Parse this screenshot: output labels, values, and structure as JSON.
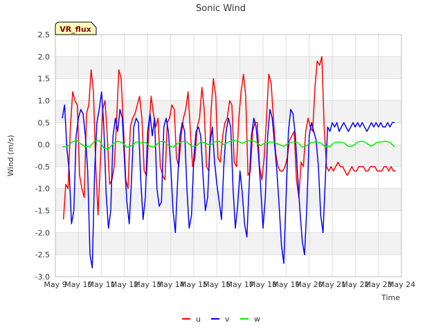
{
  "badge": {
    "label": "VR_flux",
    "background": "#ffffc0",
    "text_color": "#8b0000"
  },
  "colors": {
    "band": "#f2f2f2",
    "grid": "#dddddd",
    "axis": "#bbbbbb"
  },
  "chart_data": {
    "type": "line",
    "title": "Sonic Wind",
    "xlabel": "Time",
    "ylabel": "Wind (m/s)",
    "xlim": [
      0,
      15
    ],
    "ylim": [
      -3.0,
      2.5
    ],
    "y_ticks": [
      -3.0,
      -2.5,
      -2.0,
      -1.5,
      -1.0,
      -0.5,
      0.0,
      0.5,
      1.0,
      1.5,
      2.0,
      2.5
    ],
    "y_tick_labels": [
      "-3.0",
      "-2.5",
      "-2.0",
      "-1.5",
      "-1.0",
      "-0.5",
      "0.0",
      "0.5",
      "1.0",
      "1.5",
      "2.0",
      "2.5"
    ],
    "x_tick_labels": [
      "May 9",
      "May 10",
      "May 11",
      "May 12",
      "May 13",
      "May 14",
      "May 15",
      "May 16",
      "May 17",
      "May 18",
      "May 19",
      "May 20",
      "May 21",
      "May 22",
      "May 23",
      "May 24"
    ],
    "x_unit": "days since May 9",
    "grid": true,
    "legend_position": "bottom-center",
    "series": [
      {
        "name": "u",
        "color": "#ff0000",
        "x": [
          0.35,
          0.45,
          0.55,
          0.65,
          0.75,
          0.85,
          0.95,
          1.05,
          1.15,
          1.25,
          1.35,
          1.45,
          1.55,
          1.65,
          1.75,
          1.85,
          1.95,
          2.05,
          2.15,
          2.25,
          2.35,
          2.45,
          2.55,
          2.65,
          2.75,
          2.85,
          2.95,
          3.05,
          3.15,
          3.25,
          3.35,
          3.45,
          3.55,
          3.65,
          3.75,
          3.85,
          3.95,
          4.05,
          4.15,
          4.25,
          4.35,
          4.45,
          4.55,
          4.65,
          4.75,
          4.85,
          4.95,
          5.05,
          5.15,
          5.25,
          5.35,
          5.45,
          5.55,
          5.65,
          5.75,
          5.85,
          5.95,
          6.05,
          6.15,
          6.25,
          6.35,
          6.45,
          6.55,
          6.65,
          6.75,
          6.85,
          6.95,
          7.05,
          7.15,
          7.25,
          7.35,
          7.45,
          7.55,
          7.65,
          7.75,
          7.85,
          7.95,
          8.05,
          8.15,
          8.25,
          8.35,
          8.45,
          8.55,
          8.65,
          8.75,
          8.85,
          8.95,
          9.05,
          9.15,
          9.25,
          9.35,
          9.45,
          9.55,
          9.65,
          9.75,
          9.85,
          9.95,
          10.05,
          10.15,
          10.25,
          10.35,
          10.45,
          10.55,
          10.65,
          10.75,
          10.85,
          10.95,
          11.05,
          11.15,
          11.25,
          11.35,
          11.45,
          11.55,
          11.65,
          11.75,
          11.85,
          11.95,
          12.05,
          12.15,
          12.25,
          12.35,
          12.45,
          12.55,
          12.65,
          12.75,
          12.85,
          12.95,
          13.05,
          13.15,
          13.25,
          13.35,
          13.45,
          13.55,
          13.65,
          13.75,
          13.85,
          13.95,
          14.05,
          14.15,
          14.25,
          14.35,
          14.45,
          14.55,
          14.65,
          14.75
        ],
        "values": [
          -1.7,
          -0.9,
          -1.0,
          0.4,
          1.2,
          1.0,
          0.9,
          -0.7,
          -1.0,
          -1.2,
          0.7,
          0.9,
          1.7,
          1.2,
          -0.5,
          -1.6,
          -0.4,
          0.8,
          1.0,
          0.2,
          -0.9,
          -0.8,
          -0.5,
          0.5,
          1.7,
          1.5,
          0.4,
          -0.8,
          -1.0,
          0.4,
          0.6,
          0.7,
          0.9,
          1.1,
          0.6,
          -0.6,
          -0.7,
          0.3,
          1.1,
          0.7,
          0.4,
          0.6,
          -0.5,
          -0.7,
          -0.8,
          0.5,
          0.6,
          0.9,
          0.8,
          -0.3,
          -0.5,
          0.2,
          0.6,
          0.8,
          1.2,
          0.3,
          -0.5,
          -0.3,
          0.4,
          0.6,
          1.3,
          0.8,
          -0.5,
          -0.6,
          0.8,
          1.5,
          1.1,
          -0.3,
          -0.4,
          0.2,
          0.5,
          0.6,
          1.0,
          0.9,
          -0.4,
          -0.5,
          0.6,
          1.2,
          1.6,
          1.1,
          -0.7,
          -0.6,
          0.3,
          0.5,
          0.5,
          -0.5,
          -0.8,
          -0.3,
          0.6,
          1.6,
          1.4,
          0.6,
          -0.2,
          -0.5,
          -0.6,
          -0.6,
          -0.5,
          -0.3,
          0.1,
          0.2,
          0.3,
          -0.8,
          -1.2,
          -0.4,
          -0.5,
          0.3,
          0.6,
          0.4,
          0.3,
          1.3,
          1.9,
          1.8,
          2.0,
          0.4,
          -0.5,
          -0.6,
          -0.5,
          -0.6,
          -0.5,
          -0.4,
          -0.5,
          -0.5,
          -0.6,
          -0.7,
          -0.6,
          -0.5,
          -0.6,
          -0.6,
          -0.5,
          -0.5,
          -0.5,
          -0.6,
          -0.6,
          -0.5,
          -0.5,
          -0.5,
          -0.6,
          -0.6,
          -0.6,
          -0.5,
          -0.5,
          -0.6,
          -0.5,
          -0.6,
          -0.6
        ]
      },
      {
        "name": "v",
        "color": "#0000ff",
        "x": [
          0.3,
          0.4,
          0.5,
          0.6,
          0.7,
          0.8,
          0.9,
          1.0,
          1.1,
          1.2,
          1.3,
          1.4,
          1.5,
          1.6,
          1.7,
          1.8,
          1.9,
          2.0,
          2.1,
          2.2,
          2.3,
          2.4,
          2.5,
          2.6,
          2.7,
          2.8,
          2.9,
          3.0,
          3.1,
          3.2,
          3.3,
          3.4,
          3.5,
          3.6,
          3.7,
          3.8,
          3.9,
          4.0,
          4.1,
          4.2,
          4.3,
          4.4,
          4.5,
          4.6,
          4.7,
          4.8,
          4.9,
          5.0,
          5.1,
          5.2,
          5.3,
          5.4,
          5.5,
          5.6,
          5.7,
          5.8,
          5.9,
          6.0,
          6.1,
          6.2,
          6.3,
          6.4,
          6.5,
          6.6,
          6.7,
          6.8,
          6.9,
          7.0,
          7.1,
          7.2,
          7.3,
          7.4,
          7.5,
          7.6,
          7.7,
          7.8,
          7.9,
          8.0,
          8.1,
          8.2,
          8.3,
          8.4,
          8.5,
          8.6,
          8.7,
          8.8,
          8.9,
          9.0,
          9.1,
          9.2,
          9.3,
          9.4,
          9.5,
          9.6,
          9.7,
          9.8,
          9.9,
          10.0,
          10.1,
          10.2,
          10.3,
          10.4,
          10.5,
          10.6,
          10.7,
          10.8,
          10.9,
          11.0,
          11.1,
          11.2,
          11.3,
          11.4,
          11.5,
          11.6,
          11.7,
          11.8,
          11.9,
          12.0,
          12.1,
          12.2,
          12.3,
          12.4,
          12.5,
          12.6,
          12.7,
          12.8,
          12.9,
          13.0,
          13.1,
          13.2,
          13.3,
          13.4,
          13.5,
          13.6,
          13.7,
          13.8,
          13.9,
          14.0,
          14.1,
          14.2,
          14.3,
          14.4,
          14.5,
          14.6,
          14.7
        ],
        "values": [
          0.6,
          0.9,
          -0.1,
          -0.6,
          -1.8,
          -1.5,
          0.2,
          0.6,
          0.8,
          0.7,
          0.2,
          -0.6,
          -2.5,
          -2.8,
          -0.6,
          0.5,
          0.8,
          1.2,
          0.4,
          -1.1,
          -1.9,
          -1.5,
          0.2,
          0.6,
          0.3,
          0.8,
          0.6,
          -0.4,
          -1.3,
          -1.8,
          -0.8,
          0.4,
          0.6,
          0.5,
          -0.8,
          -1.7,
          -1.2,
          0.3,
          0.7,
          0.2,
          0.6,
          -1.0,
          -1.4,
          -1.3,
          0.4,
          0.6,
          0.3,
          -0.5,
          -1.5,
          -2.0,
          -0.8,
          0.2,
          0.5,
          0.3,
          -1.0,
          -1.9,
          -1.6,
          -0.3,
          0.3,
          0.4,
          0.2,
          -0.7,
          -1.5,
          -1.2,
          0.0,
          0.4,
          -0.4,
          -0.9,
          -1.3,
          -1.7,
          -0.5,
          0.3,
          0.6,
          0.4,
          -1.0,
          -1.9,
          -1.4,
          -0.6,
          -1.1,
          -1.8,
          -2.1,
          -0.9,
          0.2,
          0.6,
          0.4,
          -0.2,
          -1.0,
          -1.9,
          -1.2,
          0.2,
          0.8,
          0.6,
          0.0,
          -0.6,
          -1.4,
          -2.3,
          -2.7,
          -1.2,
          0.3,
          0.8,
          0.7,
          0.2,
          -0.7,
          -1.5,
          -2.2,
          -2.5,
          -1.4,
          0.2,
          0.5,
          0.3,
          0.1,
          -0.5,
          -1.6,
          -2.0,
          -0.8,
          0.4,
          0.3,
          0.5,
          0.4,
          0.5,
          0.3,
          0.4,
          0.5,
          0.4,
          0.3,
          0.4,
          0.5,
          0.4,
          0.5,
          0.4,
          0.5,
          0.4,
          0.3,
          0.4,
          0.5,
          0.4,
          0.5,
          0.4,
          0.5,
          0.4,
          0.4,
          0.5,
          0.4,
          0.5,
          0.5
        ]
      },
      {
        "name": "w",
        "color": "#00ee00",
        "x": [
          0.3,
          0.5,
          0.7,
          0.9,
          1.1,
          1.3,
          1.5,
          1.7,
          1.9,
          2.1,
          2.3,
          2.5,
          2.7,
          2.9,
          3.1,
          3.3,
          3.5,
          3.7,
          3.9,
          4.1,
          4.3,
          4.5,
          4.7,
          4.9,
          5.1,
          5.3,
          5.5,
          5.7,
          5.9,
          6.1,
          6.3,
          6.5,
          6.7,
          6.9,
          7.1,
          7.3,
          7.5,
          7.7,
          7.9,
          8.1,
          8.3,
          8.5,
          8.7,
          8.9,
          9.1,
          9.3,
          9.5,
          9.7,
          9.9,
          10.1,
          10.3,
          10.5,
          10.7,
          10.9,
          11.1,
          11.3,
          11.5,
          11.7,
          11.9,
          12.1,
          12.3,
          12.5,
          12.7,
          12.9,
          13.1,
          13.3,
          13.5,
          13.7,
          13.9,
          14.1,
          14.3,
          14.5,
          14.7
        ],
        "values": [
          -0.05,
          -0.05,
          0.05,
          0.1,
          0.02,
          -0.05,
          -0.04,
          0.08,
          0.1,
          -0.08,
          -0.1,
          0.02,
          0.08,
          0.04,
          -0.06,
          -0.03,
          0.06,
          0.05,
          0.05,
          -0.04,
          -0.05,
          0.06,
          0.08,
          -0.02,
          -0.06,
          0.03,
          0.07,
          0.06,
          -0.04,
          -0.03,
          0.06,
          0.04,
          -0.02,
          0.06,
          0.08,
          0.0,
          0.06,
          0.1,
          0.08,
          0.03,
          0.08,
          0.1,
          0.05,
          -0.02,
          0.04,
          0.06,
          0.05,
          0.0,
          -0.04,
          0.03,
          0.06,
          0.05,
          -0.06,
          -0.02,
          0.05,
          0.06,
          0.04,
          -0.05,
          -0.04,
          0.05,
          0.06,
          0.04,
          -0.04,
          -0.03,
          0.06,
          0.08,
          0.03,
          -0.04,
          0.04,
          0.06,
          0.08,
          0.05,
          -0.05
        ]
      }
    ]
  }
}
